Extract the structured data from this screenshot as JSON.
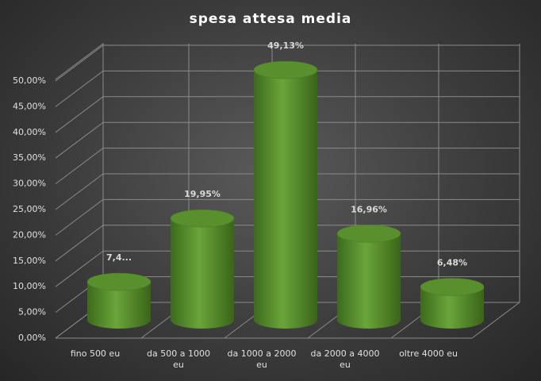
{
  "chart_data": {
    "type": "bar",
    "title": "spesa  attesa  media",
    "categories": [
      "fino 500 eu",
      "da 500 a 1000 eu",
      "da 1000 a 2000 eu",
      "da 2000 a 4000 eu",
      "oltre 4000 eu"
    ],
    "values": [
      7.48,
      19.95,
      49.13,
      16.96,
      6.48
    ],
    "value_labels": [
      "7,4...",
      "19,95%",
      "49,13%",
      "16,96%",
      "6,48%"
    ],
    "color": "#5a8f2e",
    "ylim": [
      0,
      50
    ],
    "yticks": [
      {
        "value": 0,
        "label": "0,00%"
      },
      {
        "value": 5,
        "label": "5,00%"
      },
      {
        "value": 10,
        "label": "10,00%"
      },
      {
        "value": 15,
        "label": "15,00%"
      },
      {
        "value": 20,
        "label": "20,00%"
      },
      {
        "value": 25,
        "label": "25,00%"
      },
      {
        "value": 30,
        "label": "30,00%"
      },
      {
        "value": 35,
        "label": "35,00%"
      },
      {
        "value": 40,
        "label": "40,00%"
      },
      {
        "value": 45,
        "label": "45,00%"
      },
      {
        "value": 50,
        "label": "50,00%"
      }
    ],
    "grid": true
  }
}
